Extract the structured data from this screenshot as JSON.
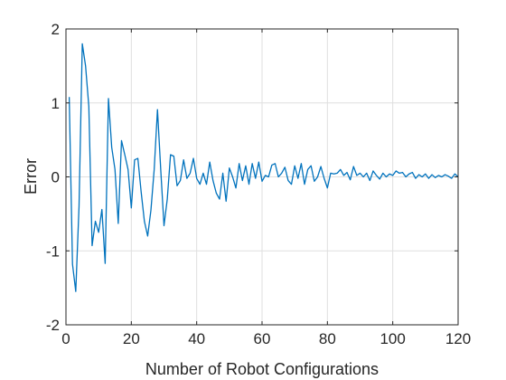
{
  "chart_data": {
    "type": "line",
    "title": "",
    "xlabel": "Number of Robot Configurations",
    "ylabel": "Error",
    "xlim": [
      0,
      120
    ],
    "ylim": [
      -2,
      2
    ],
    "xticks": [
      0,
      20,
      40,
      60,
      80,
      100,
      120
    ],
    "yticks": [
      -2,
      -1,
      0,
      1,
      2
    ],
    "xtick_labels": [
      "0",
      "20",
      "40",
      "60",
      "80",
      "100",
      "120"
    ],
    "ytick_labels": [
      "-2",
      "-1",
      "0",
      "1",
      "2"
    ],
    "grid": true,
    "legend": "none",
    "colors": {
      "series": "#0072BD",
      "grid": "#DFDFDF",
      "axis": "#262626",
      "background": "#FFFFFF"
    },
    "series": [
      {
        "x": [
          1,
          2,
          3,
          4,
          5,
          6,
          7,
          8,
          9,
          10,
          11,
          12,
          13,
          14,
          15,
          16,
          17,
          18,
          19,
          20,
          21,
          22,
          23,
          24,
          25,
          26,
          27,
          28,
          29,
          30,
          31,
          32,
          33,
          34,
          35,
          36,
          37,
          38,
          39,
          40,
          41,
          42,
          43,
          44,
          45,
          46,
          47,
          48,
          49,
          50,
          51,
          52,
          53,
          54,
          55,
          56,
          57,
          58,
          59,
          60,
          61,
          62,
          63,
          64,
          65,
          66,
          67,
          68,
          69,
          70,
          71,
          72,
          73,
          74,
          75,
          76,
          77,
          78,
          79,
          80,
          81,
          82,
          83,
          84,
          85,
          86,
          87,
          88,
          89,
          90,
          91,
          92,
          93,
          94,
          95,
          96,
          97,
          98,
          99,
          100,
          101,
          102,
          103,
          104,
          105,
          106,
          107,
          108,
          109,
          110,
          111,
          112,
          113,
          114,
          115,
          116,
          117,
          118,
          119,
          120
        ],
        "values": [
          1.08,
          -1.18,
          -1.55,
          -0.4,
          1.8,
          1.5,
          0.95,
          -0.93,
          -0.6,
          -0.75,
          -0.44,
          -1.17,
          1.06,
          0.4,
          0.1,
          -0.63,
          0.49,
          0.3,
          0.1,
          -0.42,
          0.23,
          0.25,
          -0.2,
          -0.6,
          -0.8,
          -0.45,
          0.1,
          0.91,
          0.1,
          -0.66,
          -0.3,
          0.3,
          0.28,
          -0.12,
          -0.05,
          0.23,
          -0.02,
          0.05,
          0.25,
          -0.02,
          -0.1,
          0.05,
          -0.1,
          0.2,
          -0.05,
          -0.22,
          -0.3,
          0.05,
          -0.33,
          0.12,
          0.0,
          -0.15,
          0.18,
          -0.05,
          0.15,
          -0.1,
          0.18,
          -0.02,
          0.2,
          -0.06,
          0.02,
          0.0,
          0.16,
          0.18,
          0.0,
          0.05,
          0.13,
          -0.05,
          -0.1,
          0.15,
          -0.02,
          0.18,
          -0.1,
          0.1,
          0.15,
          -0.06,
          0.0,
          0.14,
          -0.02,
          -0.15,
          0.05,
          0.04,
          0.05,
          0.1,
          0.02,
          0.06,
          -0.04,
          0.14,
          0.02,
          0.05,
          0.0,
          0.05,
          -0.05,
          0.08,
          0.02,
          -0.03,
          0.05,
          0.0,
          0.04,
          0.02,
          0.08,
          0.05,
          0.06,
          0.0,
          0.04,
          0.06,
          -0.02,
          0.03,
          0.0,
          0.04,
          -0.02,
          0.03,
          -0.01,
          0.02,
          0.0,
          0.03,
          0.01,
          -0.02,
          0.04,
          0.0
        ]
      }
    ]
  }
}
